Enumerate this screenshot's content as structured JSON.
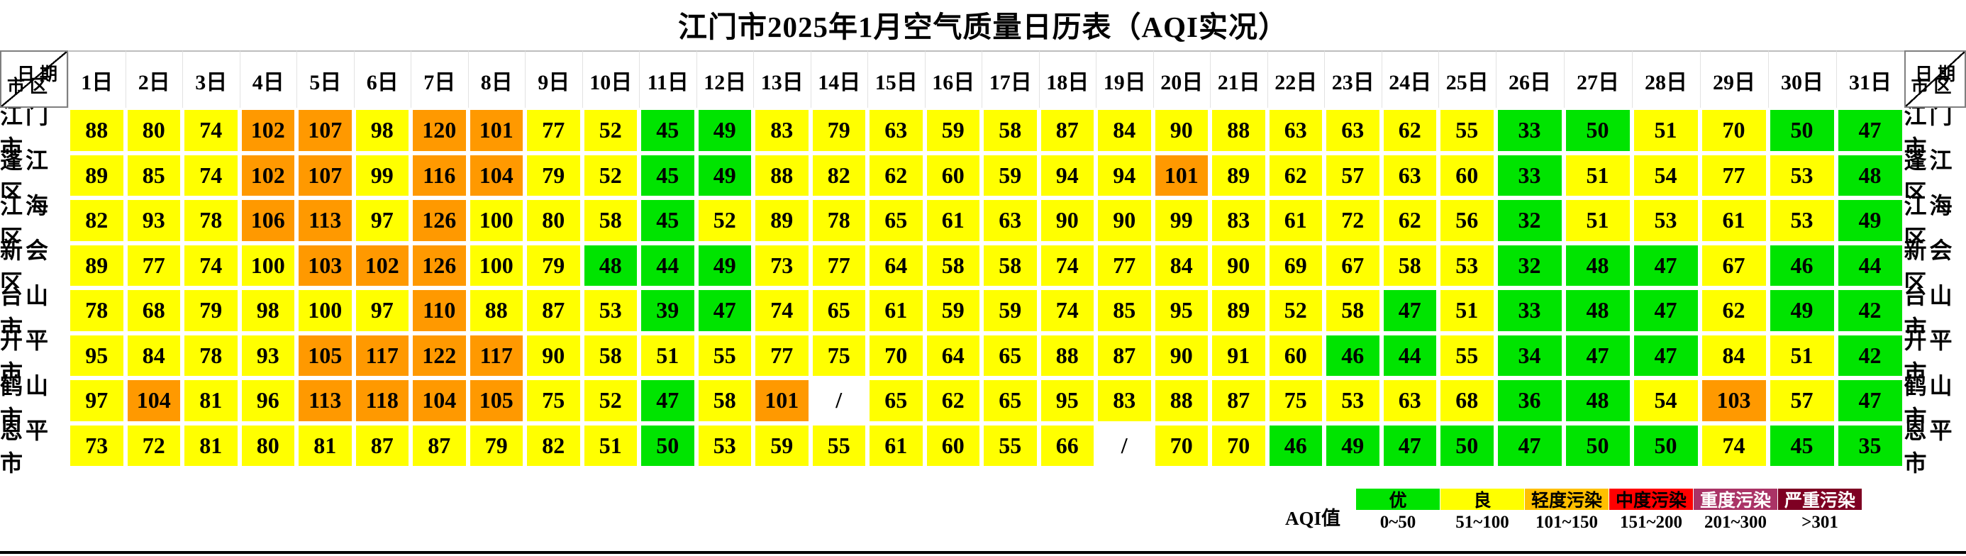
{
  "title": "江门市2025年1月空气质量日历表（AQI实况）",
  "corner": {
    "top": "日期",
    "bottom": "市区"
  },
  "legend": {
    "label": "AQI值"
  },
  "chart_data": {
    "type": "heatmap",
    "title": "江门市2025年1月空气质量日历表（AQI实况）",
    "xlabel": "日期",
    "ylabel": "市区",
    "missing_marker": "/",
    "categories": [
      "1日",
      "2日",
      "3日",
      "4日",
      "5日",
      "6日",
      "7日",
      "8日",
      "9日",
      "10日",
      "11日",
      "12日",
      "13日",
      "14日",
      "15日",
      "16日",
      "17日",
      "18日",
      "19日",
      "20日",
      "21日",
      "22日",
      "23日",
      "24日",
      "25日",
      "26日",
      "27日",
      "28日",
      "29日",
      "30日",
      "31日"
    ],
    "rows": [
      {
        "name": "江门市",
        "values": [
          88,
          80,
          74,
          102,
          107,
          98,
          120,
          101,
          77,
          52,
          45,
          49,
          83,
          79,
          63,
          59,
          58,
          87,
          84,
          90,
          88,
          63,
          63,
          62,
          55,
          33,
          50,
          51,
          70,
          50,
          47
        ]
      },
      {
        "name": "蓬江区",
        "values": [
          89,
          85,
          74,
          102,
          107,
          99,
          116,
          104,
          79,
          52,
          45,
          49,
          88,
          82,
          62,
          60,
          59,
          94,
          94,
          101,
          89,
          62,
          57,
          63,
          60,
          33,
          51,
          54,
          77,
          53,
          48
        ]
      },
      {
        "name": "江海区",
        "values": [
          82,
          93,
          78,
          106,
          113,
          97,
          126,
          100,
          80,
          58,
          45,
          52,
          89,
          78,
          65,
          61,
          63,
          90,
          90,
          99,
          83,
          61,
          72,
          62,
          56,
          32,
          51,
          53,
          61,
          53,
          49
        ]
      },
      {
        "name": "新会区",
        "values": [
          89,
          77,
          74,
          100,
          103,
          102,
          126,
          100,
          79,
          48,
          44,
          49,
          73,
          77,
          64,
          58,
          58,
          74,
          77,
          84,
          90,
          69,
          67,
          58,
          53,
          32,
          48,
          47,
          67,
          46,
          44
        ]
      },
      {
        "name": "台山市",
        "values": [
          78,
          68,
          79,
          98,
          100,
          97,
          110,
          88,
          87,
          53,
          39,
          47,
          74,
          65,
          61,
          59,
          59,
          74,
          85,
          95,
          89,
          52,
          58,
          47,
          51,
          33,
          48,
          47,
          62,
          49,
          42
        ]
      },
      {
        "name": "开平市",
        "values": [
          95,
          84,
          78,
          93,
          105,
          117,
          122,
          117,
          90,
          58,
          51,
          55,
          77,
          75,
          70,
          64,
          65,
          88,
          87,
          90,
          91,
          60,
          46,
          44,
          55,
          34,
          47,
          47,
          84,
          51,
          42
        ]
      },
      {
        "name": "鹤山市",
        "values": [
          97,
          104,
          81,
          96,
          113,
          118,
          104,
          105,
          75,
          52,
          47,
          58,
          101,
          "/",
          65,
          62,
          65,
          95,
          83,
          88,
          87,
          75,
          53,
          63,
          68,
          36,
          48,
          54,
          103,
          57,
          47
        ]
      },
      {
        "name": "恩平市",
        "values": [
          73,
          72,
          81,
          80,
          81,
          87,
          87,
          79,
          82,
          51,
          50,
          53,
          59,
          55,
          61,
          60,
          55,
          66,
          "/",
          70,
          70,
          46,
          49,
          47,
          50,
          47,
          50,
          50,
          74,
          45,
          35
        ]
      }
    ],
    "levels": [
      {
        "name": "优",
        "range": "0~50",
        "max": 50,
        "cell_color": "#00E400",
        "legend_color": "#00E400",
        "text_color": "#000000"
      },
      {
        "name": "良",
        "range": "51~100",
        "max": 100,
        "cell_color": "#FFFF00",
        "legend_color": "#FFFF00",
        "text_color": "#000000"
      },
      {
        "name": "轻度污染",
        "range": "101~150",
        "max": 150,
        "cell_color": "#FF9900",
        "legend_color": "#FFC000",
        "text_color": "#000000"
      },
      {
        "name": "中度污染",
        "range": "151~200",
        "max": 200,
        "cell_color": "#FF0000",
        "legend_color": "#FF0000",
        "text_color": "#000000"
      },
      {
        "name": "重度污染",
        "range": "201~300",
        "max": 300,
        "cell_color": "#AA3366",
        "legend_color": "#AA3366",
        "text_color": "#FFFFFF"
      },
      {
        "name": "严重污染",
        "range": ">301",
        "max": 999999,
        "cell_color": "#7E0023",
        "legend_color": "#7E0023",
        "text_color": "#FFFFFF"
      }
    ]
  }
}
